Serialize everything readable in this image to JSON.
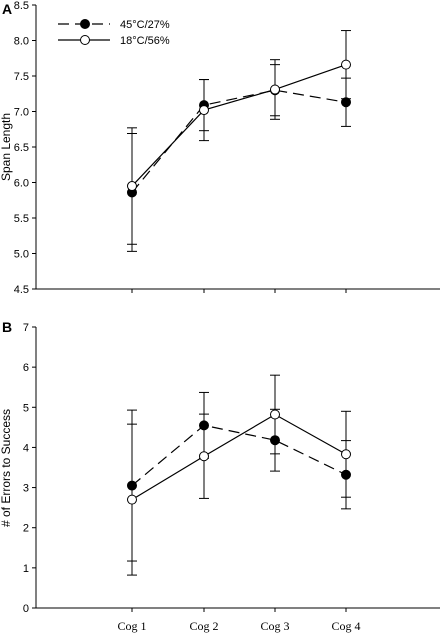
{
  "chart_data": [
    {
      "panel": "A",
      "type": "line",
      "ylabel": "Span Length",
      "ylim": [
        4.5,
        8.5
      ],
      "yticks": [
        4.5,
        5.0,
        5.5,
        6.0,
        6.5,
        7.0,
        7.5,
        8.0,
        8.5
      ],
      "categories": [
        "Cog 1",
        "Cog 2",
        "Cog 3",
        "Cog 4"
      ],
      "legend": "top-left",
      "series": [
        {
          "name": "45°C/27%",
          "marker": "filled-circle",
          "line": "dashed",
          "color": "#000000",
          "values": [
            5.86,
            7.09,
            7.3,
            7.13
          ],
          "err": [
            0.83,
            0.36,
            0.36,
            0.34
          ]
        },
        {
          "name": "18°C/56%",
          "marker": "open-circle",
          "line": "solid",
          "color": "#000000",
          "values": [
            5.95,
            7.02,
            7.31,
            7.66
          ],
          "err": [
            0.82,
            0.43,
            0.42,
            0.48
          ]
        }
      ]
    },
    {
      "panel": "B",
      "type": "line",
      "ylabel": "# of Errors to Success",
      "ylim": [
        0,
        7
      ],
      "yticks": [
        0,
        1,
        2,
        3,
        4,
        5,
        6,
        7
      ],
      "categories": [
        "Cog 1",
        "Cog 2",
        "Cog 3",
        "Cog 4"
      ],
      "series": [
        {
          "name": "45°C/27%",
          "marker": "filled-circle",
          "line": "dashed",
          "color": "#000000",
          "values": [
            3.05,
            4.55,
            4.18,
            3.32
          ],
          "err": [
            1.88,
            0.82,
            0.77,
            0.85
          ]
        },
        {
          "name": "18°C/56%",
          "marker": "open-circle",
          "line": "solid",
          "color": "#000000",
          "values": [
            2.7,
            3.78,
            4.82,
            3.83
          ],
          "err": [
            1.88,
            1.05,
            0.98,
            1.07
          ]
        }
      ]
    }
  ]
}
